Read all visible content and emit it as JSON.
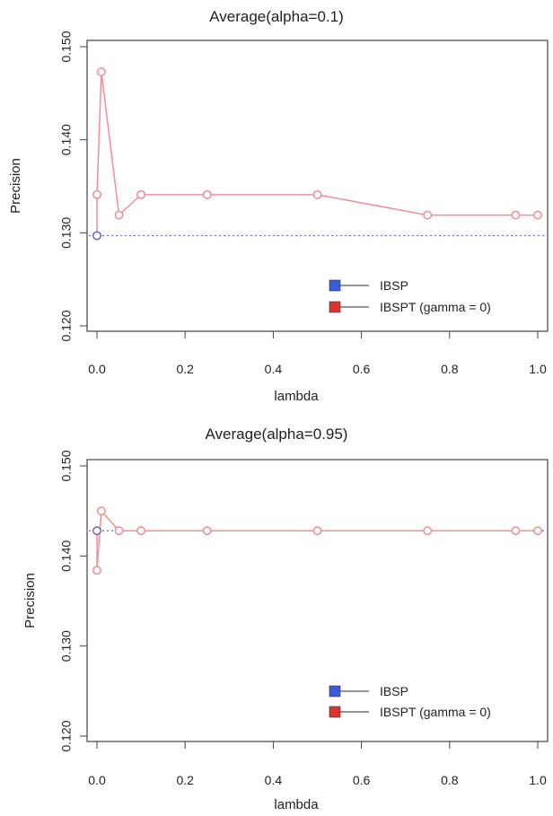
{
  "chart_data": [
    {
      "type": "line",
      "title": "Average(alpha=0.1)",
      "xlabel": "lambda",
      "ylabel": "Precision",
      "xlim": [
        0,
        1
      ],
      "ylim": [
        0.12,
        0.15
      ],
      "xticks": [
        "0.0",
        "0.2",
        "0.4",
        "0.6",
        "0.8",
        "1.0"
      ],
      "yticks": [
        "0.120",
        "0.130",
        "0.140",
        "0.150"
      ],
      "legend_position": "bottom-right",
      "legend": [
        "IBSP",
        "IBSPT (gamma = 0)"
      ],
      "series": [
        {
          "name": "IBSP",
          "color": "#6a6ad8",
          "marker_fill": "#3b5bdb",
          "style": "dotted-horizontal",
          "x": [
            0.0
          ],
          "y": [
            0.1297
          ]
        },
        {
          "name": "IBSPT (gamma = 0)",
          "color": "#f08f98",
          "marker_fill": "#e03131",
          "style": "line-with-points",
          "x": [
            0.0,
            0.0,
            0.01,
            0.05,
            0.1,
            0.25,
            0.5,
            0.75,
            0.95,
            1.0
          ],
          "y": [
            0.1297,
            0.1341,
            0.1473,
            0.1319,
            0.1341,
            0.1341,
            0.1341,
            0.1319,
            0.1319,
            0.1319
          ]
        }
      ]
    },
    {
      "type": "line",
      "title": "Average(alpha=0.95)",
      "xlabel": "lambda",
      "ylabel": "Precision",
      "xlim": [
        0,
        1
      ],
      "ylim": [
        0.12,
        0.15
      ],
      "xticks": [
        "0.0",
        "0.2",
        "0.4",
        "0.6",
        "0.8",
        "1.0"
      ],
      "yticks": [
        "0.120",
        "0.130",
        "0.140",
        "0.150"
      ],
      "legend_position": "bottom-right",
      "legend": [
        "IBSP",
        "IBSPT (gamma = 0)"
      ],
      "series": [
        {
          "name": "IBSP",
          "color": "#6a6ad8",
          "marker_fill": "#3b5bdb",
          "style": "dotted-horizontal",
          "x": [
            0.0
          ],
          "y": [
            0.1428
          ]
        },
        {
          "name": "IBSPT (gamma = 0)",
          "color": "#f08f98",
          "marker_fill": "#e03131",
          "style": "line-with-points",
          "x": [
            0.0,
            0.0,
            0.01,
            0.05,
            0.1,
            0.25,
            0.5,
            0.75,
            0.95,
            1.0
          ],
          "y": [
            0.1428,
            0.1384,
            0.145,
            0.1428,
            0.1428,
            0.1428,
            0.1428,
            0.1428,
            0.1428,
            0.1428
          ]
        }
      ]
    }
  ]
}
